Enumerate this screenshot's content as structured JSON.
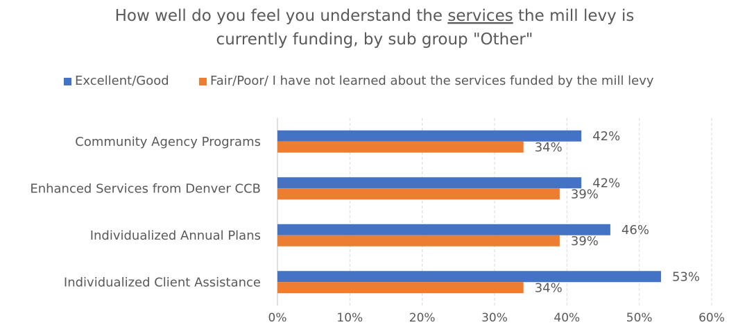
{
  "chart_data": {
    "type": "bar",
    "orientation": "horizontal",
    "title_line1_pre": "How well do you feel you understand the ",
    "title_line1_underlined": "services",
    "title_line1_post": " the mill levy is",
    "title_line2": "currently funding, by sub group \"Other\"",
    "categories": [
      "Community Agency Programs",
      "Enhanced Services from Denver CCB",
      "Individualized Annual Plans",
      "Individualized Client Assistance"
    ],
    "series": [
      {
        "name": "Excellent/Good",
        "color": "#4472C4",
        "values": [
          42,
          42,
          46,
          53
        ],
        "labels": [
          "42%",
          "42%",
          "46%",
          "53%"
        ]
      },
      {
        "name": "Fair/Poor/ I have not learned about the services funded by the mill levy",
        "color": "#ED7D31",
        "values": [
          34,
          39,
          39,
          34
        ],
        "labels": [
          "34%",
          "39%",
          "39%",
          "34%"
        ]
      }
    ],
    "xlim": [
      0,
      60
    ],
    "xticks": [
      0,
      10,
      20,
      30,
      40,
      50,
      60
    ],
    "xtick_labels": [
      "0%",
      "10%",
      "20%",
      "30%",
      "40%",
      "50%",
      "60%"
    ],
    "grid": true,
    "legend_position": "top"
  }
}
